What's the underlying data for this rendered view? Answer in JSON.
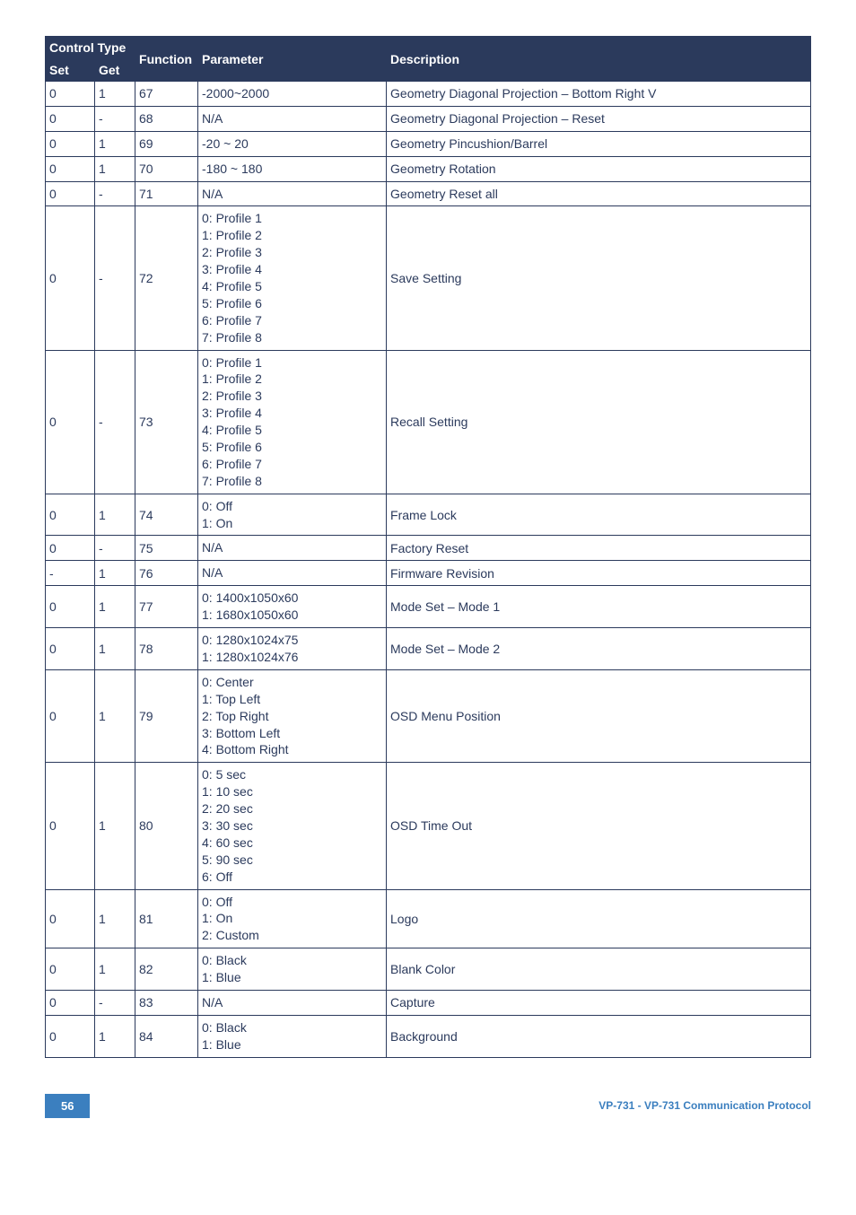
{
  "header": {
    "control_type": "Control Type",
    "set": "Set",
    "get": "Get",
    "function": "Function",
    "parameter": "Parameter",
    "description": "Description"
  },
  "rows": [
    {
      "set": "0",
      "get": "1",
      "func": "67",
      "param": "-2000~2000",
      "desc": "Geometry Diagonal Projection – Bottom Right V"
    },
    {
      "set": "0",
      "get": "-",
      "func": "68",
      "param": "N/A",
      "desc": "Geometry Diagonal Projection – Reset"
    },
    {
      "set": "0",
      "get": "1",
      "func": "69",
      "param": "-20 ~ 20",
      "desc": "Geometry Pincushion/Barrel"
    },
    {
      "set": "0",
      "get": "1",
      "func": "70",
      "param": "-180 ~ 180",
      "desc": "Geometry Rotation"
    },
    {
      "set": "0",
      "get": "-",
      "func": "71",
      "param": "N/A",
      "desc": "Geometry Reset all"
    },
    {
      "set": "0",
      "get": "-",
      "func": "72",
      "param": "0: Profile 1\n1: Profile 2\n2: Profile 3\n3: Profile 4\n4: Profile 5\n5: Profile 6\n6: Profile 7\n7: Profile 8",
      "desc": "Save Setting"
    },
    {
      "set": "0",
      "get": "-",
      "func": "73",
      "param": "0: Profile 1\n1: Profile 2\n2: Profile 3\n3: Profile 4\n4: Profile 5\n5: Profile 6\n6: Profile 7\n7: Profile 8",
      "desc": "Recall Setting"
    },
    {
      "set": "0",
      "get": "1",
      "func": "74",
      "param": "0: Off\n1: On",
      "desc": "Frame Lock"
    },
    {
      "set": "0",
      "get": "-",
      "func": "75",
      "param": "N/A",
      "desc": "Factory Reset"
    },
    {
      "set": "-",
      "get": "1",
      "func": "76",
      "param": "N/A",
      "desc": "Firmware Revision"
    },
    {
      "set": "0",
      "get": "1",
      "func": "77",
      "param": "0: 1400x1050x60\n1: 1680x1050x60",
      "desc": "Mode Set – Mode 1"
    },
    {
      "set": "0",
      "get": "1",
      "func": "78",
      "param": "0: 1280x1024x75\n1: 1280x1024x76",
      "desc": "Mode Set – Mode 2"
    },
    {
      "set": "0",
      "get": "1",
      "func": "79",
      "param": "0: Center\n1: Top Left\n2: Top Right\n3: Bottom Left\n4: Bottom Right",
      "desc": "OSD Menu Position"
    },
    {
      "set": "0",
      "get": "1",
      "func": "80",
      "param": "0: 5 sec\n1: 10 sec\n2: 20 sec\n3: 30 sec\n4: 60 sec\n5: 90 sec\n6: Off",
      "desc": "OSD Time Out"
    },
    {
      "set": "0",
      "get": "1",
      "func": "81",
      "param": "0: Off\n1: On\n2: Custom",
      "desc": "Logo"
    },
    {
      "set": "0",
      "get": "1",
      "func": "82",
      "param": "0: Black\n1: Blue",
      "desc": "Blank Color"
    },
    {
      "set": "0",
      "get": "-",
      "func": "83",
      "param": "N/A",
      "desc": "Capture"
    },
    {
      "set": "0",
      "get": "1",
      "func": "84",
      "param": "0: Black\n1: Blue",
      "desc": "Background"
    }
  ],
  "footer": {
    "page": "56",
    "text": "VP-731 - VP-731 Communication Protocol"
  }
}
